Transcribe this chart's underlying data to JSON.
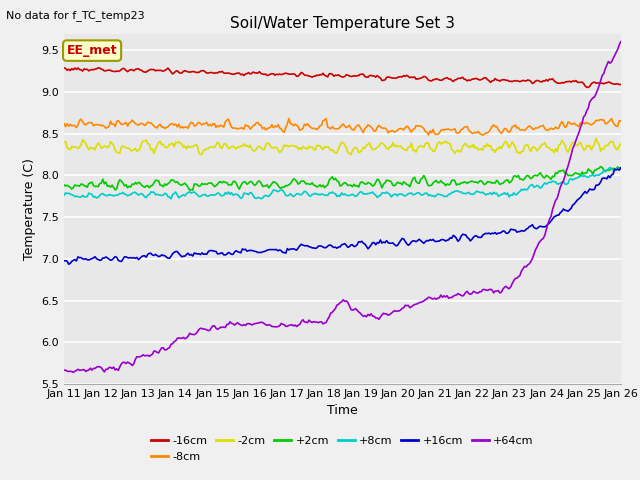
{
  "title": "Soil/Water Temperature Set 3",
  "xlabel": "Time",
  "ylabel": "Temperature (C)",
  "no_data_text": "No data for f_TC_temp23",
  "ee_met_label": "EE_met",
  "ylim": [
    5.5,
    9.7
  ],
  "xlim": [
    0,
    15
  ],
  "x_tick_labels": [
    "Jan 11",
    "Jan 12",
    "Jan 13",
    "Jan 14",
    "Jan 15",
    "Jan 16",
    "Jan 17",
    "Jan 18",
    "Jan 19",
    "Jan 20",
    "Jan 21",
    "Jan 22",
    "Jan 23",
    "Jan 24",
    "Jan 25",
    "Jan 26"
  ],
  "series": [
    {
      "label": "-16cm",
      "color": "#cc0000"
    },
    {
      "label": "-8cm",
      "color": "#ff8800"
    },
    {
      "label": "-2cm",
      "color": "#dddd00"
    },
    {
      "label": "+2cm",
      "color": "#00cc00"
    },
    {
      "label": "+8cm",
      "color": "#00cccc"
    },
    {
      "label": "+16cm",
      "color": "#0000cc"
    },
    {
      "label": "+64cm",
      "color": "#9900cc"
    }
  ],
  "background_color": "#e8e8e8",
  "grid_color": "#ffffff",
  "yticks": [
    5.5,
    6.0,
    6.5,
    7.0,
    7.5,
    8.0,
    8.5,
    9.0,
    9.5
  ]
}
